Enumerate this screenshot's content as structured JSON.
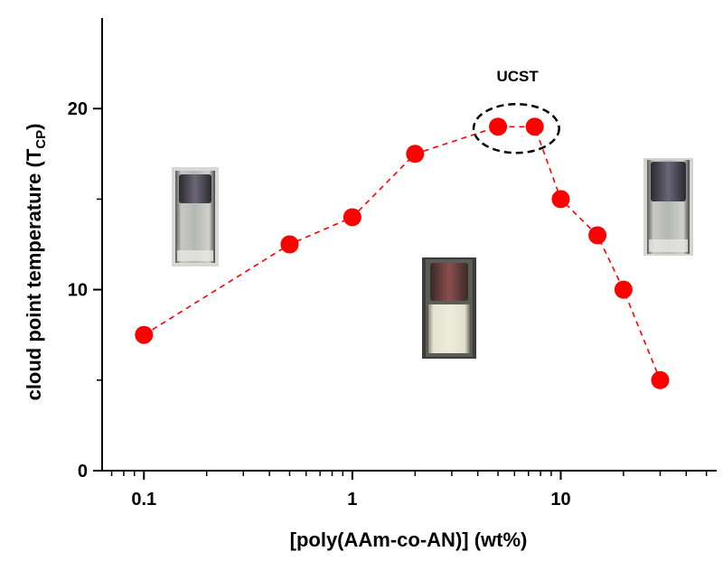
{
  "chart_data": {
    "type": "scatter",
    "title": "",
    "xlabel": "[poly(AAm-co-AN)] (wt%)",
    "ylabel_main": "cloud point temperature (T",
    "ylabel_sub": "CP",
    "ylabel_close": ")",
    "x_scale": "log",
    "xlim": [
      0.063,
      56
    ],
    "ylim": [
      0,
      25
    ],
    "x_ticks": [
      {
        "value": 0.1,
        "label": "0.1"
      },
      {
        "value": 1,
        "label": "1"
      },
      {
        "value": 10,
        "label": "10"
      }
    ],
    "y_ticks": [
      {
        "value": 0,
        "label": "0"
      },
      {
        "value": 10,
        "label": "10"
      },
      {
        "value": 20,
        "label": "20"
      }
    ],
    "series": [
      {
        "name": "cloud point",
        "color": "#ff0000",
        "line_style": "dashed",
        "x": [
          0.1,
          0.5,
          1,
          2,
          5,
          7.5,
          10,
          15,
          20,
          30
        ],
        "y": [
          7.5,
          12.5,
          14,
          17.5,
          19,
          19,
          15,
          13,
          10,
          5
        ]
      }
    ],
    "annotations": [
      {
        "text": "UCST",
        "x": 6.2,
        "y": 21.8,
        "encircles": [
          5,
          7.5
        ]
      }
    ],
    "insets": [
      {
        "name": "vial-clear-low-concentration",
        "x": 0.18,
        "y": 16.3,
        "appearance": "clear"
      },
      {
        "name": "vial-turbid-mid-concentration",
        "x": 3.2,
        "y": 10.3,
        "appearance": "turbid"
      },
      {
        "name": "vial-clear-high-concentration",
        "x": 13.5,
        "y": 16.6,
        "appearance": "clear"
      }
    ]
  }
}
